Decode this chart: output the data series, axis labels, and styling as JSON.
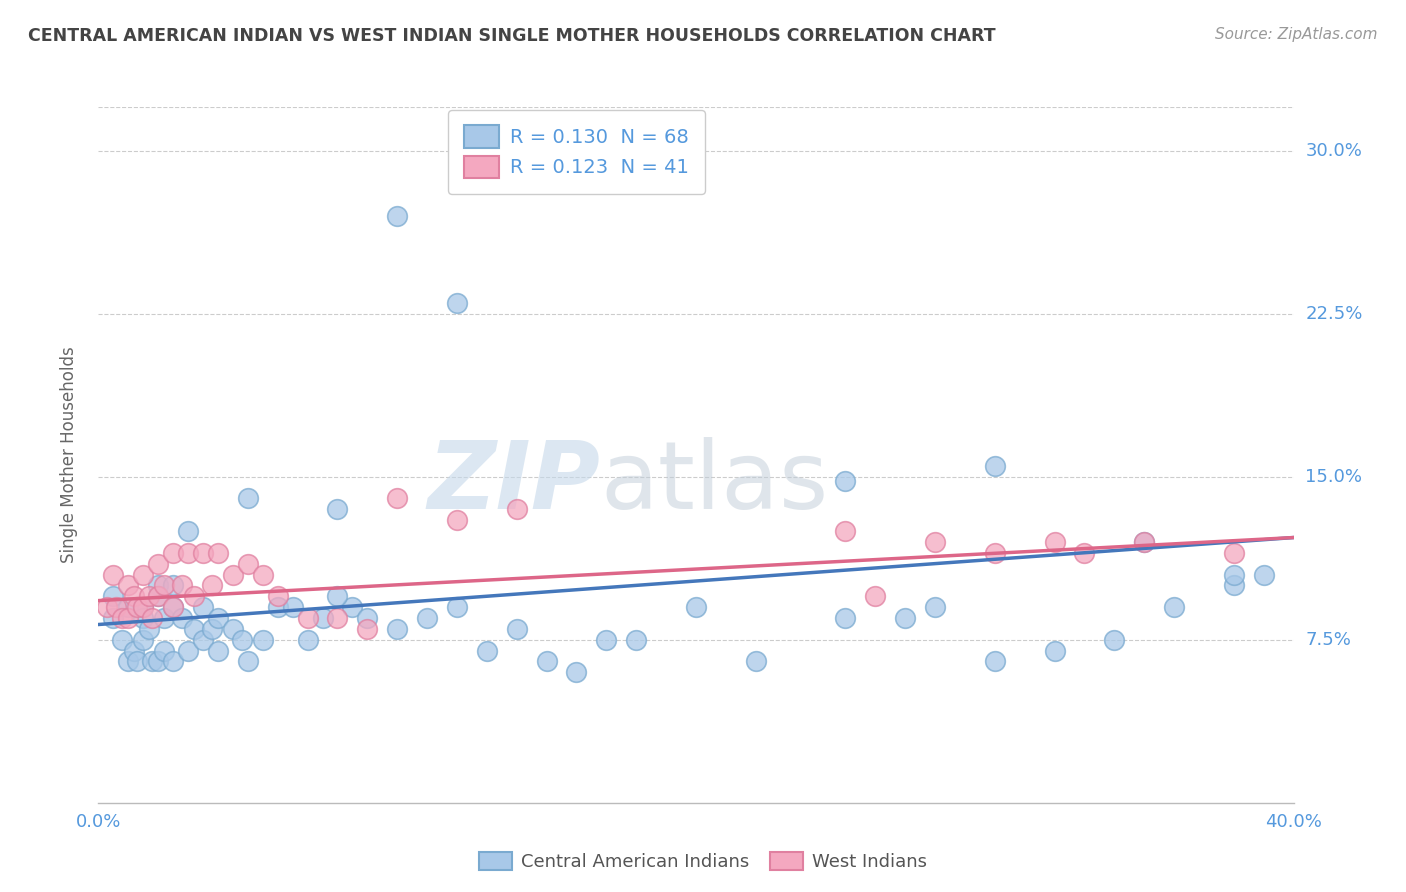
{
  "title": "CENTRAL AMERICAN INDIAN VS WEST INDIAN SINGLE MOTHER HOUSEHOLDS CORRELATION CHART",
  "source": "Source: ZipAtlas.com",
  "ylabel": "Single Mother Households",
  "xlim": [
    0.0,
    0.4
  ],
  "ylim": [
    0.0,
    0.32
  ],
  "xticks": [
    0.0,
    0.4
  ],
  "xticklabels": [
    "0.0%",
    "40.0%"
  ],
  "yticks": [
    0.075,
    0.15,
    0.225,
    0.3
  ],
  "yticklabels": [
    "7.5%",
    "15.0%",
    "22.5%",
    "30.0%"
  ],
  "legend_r1": "R = 0.130  N = 68",
  "legend_r2": "R = 0.123  N = 41",
  "color_blue": "#a8c8e8",
  "color_pink": "#f4a8c0",
  "edge_blue": "#7aaad0",
  "edge_pink": "#e080a0",
  "watermark_zip": "ZIP",
  "watermark_atlas": "atlas",
  "blue_scatter_x": [
    0.005,
    0.005,
    0.008,
    0.01,
    0.01,
    0.012,
    0.013,
    0.015,
    0.015,
    0.015,
    0.017,
    0.018,
    0.02,
    0.02,
    0.02,
    0.022,
    0.022,
    0.025,
    0.025,
    0.025,
    0.028,
    0.03,
    0.03,
    0.032,
    0.035,
    0.035,
    0.038,
    0.04,
    0.04,
    0.045,
    0.048,
    0.05,
    0.055,
    0.06,
    0.065,
    0.07,
    0.075,
    0.08,
    0.085,
    0.09,
    0.1,
    0.11,
    0.12,
    0.13,
    0.14,
    0.15,
    0.16,
    0.17,
    0.18,
    0.2,
    0.22,
    0.25,
    0.27,
    0.28,
    0.3,
    0.32,
    0.34,
    0.36,
    0.38,
    0.39,
    0.05,
    0.08,
    0.1,
    0.12,
    0.25,
    0.3,
    0.35,
    0.38
  ],
  "blue_scatter_y": [
    0.095,
    0.085,
    0.075,
    0.09,
    0.065,
    0.07,
    0.065,
    0.09,
    0.085,
    0.075,
    0.08,
    0.065,
    0.1,
    0.095,
    0.065,
    0.085,
    0.07,
    0.1,
    0.09,
    0.065,
    0.085,
    0.125,
    0.07,
    0.08,
    0.09,
    0.075,
    0.08,
    0.085,
    0.07,
    0.08,
    0.075,
    0.065,
    0.075,
    0.09,
    0.09,
    0.075,
    0.085,
    0.135,
    0.09,
    0.085,
    0.08,
    0.085,
    0.09,
    0.07,
    0.08,
    0.065,
    0.06,
    0.075,
    0.075,
    0.09,
    0.065,
    0.085,
    0.085,
    0.09,
    0.065,
    0.07,
    0.075,
    0.09,
    0.1,
    0.105,
    0.14,
    0.095,
    0.27,
    0.23,
    0.148,
    0.155,
    0.12,
    0.105
  ],
  "pink_scatter_x": [
    0.003,
    0.005,
    0.006,
    0.008,
    0.01,
    0.01,
    0.012,
    0.013,
    0.015,
    0.015,
    0.017,
    0.018,
    0.02,
    0.02,
    0.022,
    0.025,
    0.025,
    0.028,
    0.03,
    0.032,
    0.035,
    0.038,
    0.04,
    0.045,
    0.05,
    0.055,
    0.06,
    0.07,
    0.08,
    0.09,
    0.1,
    0.12,
    0.14,
    0.25,
    0.26,
    0.28,
    0.3,
    0.32,
    0.33,
    0.35,
    0.38
  ],
  "pink_scatter_y": [
    0.09,
    0.105,
    0.09,
    0.085,
    0.1,
    0.085,
    0.095,
    0.09,
    0.105,
    0.09,
    0.095,
    0.085,
    0.11,
    0.095,
    0.1,
    0.115,
    0.09,
    0.1,
    0.115,
    0.095,
    0.115,
    0.1,
    0.115,
    0.105,
    0.11,
    0.105,
    0.095,
    0.085,
    0.085,
    0.08,
    0.14,
    0.13,
    0.135,
    0.125,
    0.095,
    0.12,
    0.115,
    0.12,
    0.115,
    0.12,
    0.115
  ],
  "blue_line": [
    0.0,
    0.4,
    0.082,
    0.122
  ],
  "pink_line": [
    0.0,
    0.4,
    0.093,
    0.122
  ],
  "background_color": "#ffffff",
  "grid_color": "#cccccc",
  "text_color": "#5599dd",
  "axis_label_color": "#666666",
  "title_color": "#444444"
}
